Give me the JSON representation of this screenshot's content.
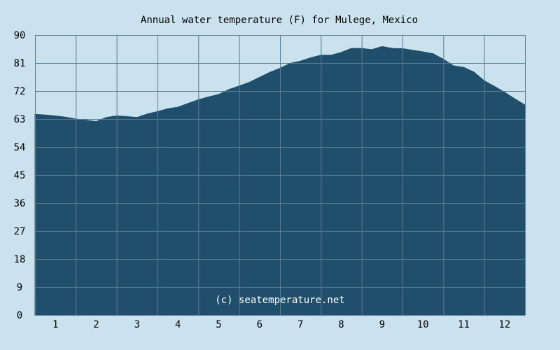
{
  "colors": {
    "background": "#c9e2ee",
    "area_fill": "#1f4f6b",
    "grid": "#5a7c92",
    "text": "#000000",
    "watermark_text": "#ffffff"
  },
  "chart_data": {
    "type": "area",
    "title": "Annual water temperature (F) for Mulege, Mexico",
    "xlabel": "",
    "ylabel": "",
    "watermark": "(c) seatemperature.net",
    "x_tick_labels": [
      "1",
      "2",
      "3",
      "4",
      "5",
      "6",
      "7",
      "8",
      "9",
      "10",
      "11",
      "12"
    ],
    "y_ticks": [
      0,
      9,
      18,
      27,
      36,
      45,
      54,
      63,
      72,
      81,
      90
    ],
    "ylim": [
      0,
      90
    ],
    "xlim": [
      0,
      12
    ],
    "grid": true,
    "series": [
      {
        "x": [
          0,
          0.25,
          0.5,
          0.75,
          1.0,
          1.25,
          1.5,
          1.75,
          2.0,
          2.25,
          2.5,
          2.75,
          3.0,
          3.25,
          3.5,
          3.75,
          4.0,
          4.25,
          4.5,
          4.75,
          5.0,
          5.25,
          5.5,
          5.75,
          6.0,
          6.25,
          6.5,
          6.75,
          7.0,
          7.25,
          7.5,
          7.75,
          8.0,
          8.25,
          8.5,
          8.75,
          9.0,
          9.25,
          9.5,
          9.75,
          10.0,
          10.25,
          10.5,
          10.75,
          11.0,
          11.25,
          11.5,
          11.75,
          12.0
        ],
        "values": [
          64.5,
          64.3,
          64.0,
          63.6,
          63.0,
          62.6,
          62.2,
          63.5,
          64.0,
          63.8,
          63.5,
          64.6,
          65.4,
          66.3,
          66.8,
          68.0,
          69.2,
          70.1,
          70.9,
          72.5,
          73.6,
          74.8,
          76.4,
          78.0,
          79.3,
          80.9,
          81.6,
          82.7,
          83.5,
          83.5,
          84.4,
          85.7,
          85.7,
          85.3,
          86.3,
          85.7,
          85.6,
          85.1,
          84.6,
          84.0,
          82.2,
          80.1,
          79.6,
          78.1,
          75.3,
          73.5,
          71.6,
          69.5,
          67.5
        ]
      }
    ]
  }
}
